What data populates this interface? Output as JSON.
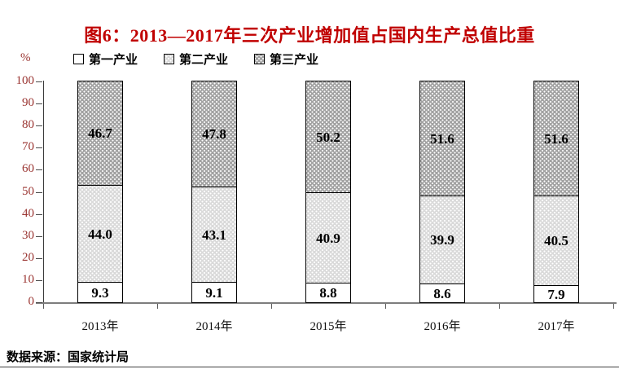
{
  "chart_data": {
    "type": "bar",
    "stacked": true,
    "title": "图6：2013—2017年三次产业增加值占国内生产总值比重",
    "categories": [
      "2013年",
      "2014年",
      "2015年",
      "2016年",
      "2017年"
    ],
    "series": [
      {
        "name": "第一产业",
        "values": [
          9.3,
          9.1,
          8.8,
          8.6,
          7.9
        ],
        "fill": "#ffffff",
        "pattern": "none"
      },
      {
        "name": "第二产业",
        "values": [
          44.0,
          43.1,
          40.9,
          39.9,
          40.5
        ],
        "fill": "#dadada",
        "pattern": "white-dots"
      },
      {
        "name": "第三产业",
        "values": [
          46.7,
          47.8,
          50.2,
          51.6,
          51.6
        ],
        "fill": "#a2a2a2",
        "pattern": "white-dots"
      }
    ],
    "xlabel": "",
    "ylabel": "%",
    "ylim": [
      0,
      100
    ],
    "ytick_step": 10,
    "grid": false,
    "legend_position": "top-left",
    "source": "数据来源：国家统计局",
    "colors": {
      "title": "#c00000",
      "axis_labels": "#9a3431",
      "category_labels": "#111111",
      "bar_border": "#000000",
      "axis_line": "#7d7d7d"
    }
  }
}
